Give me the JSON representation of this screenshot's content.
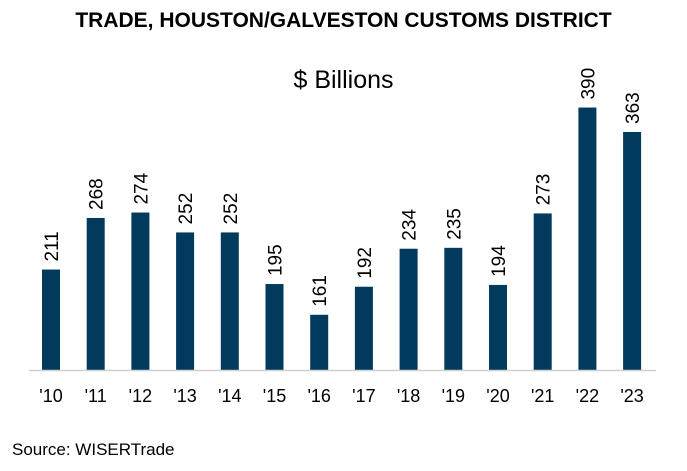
{
  "chart_data": {
    "type": "bar",
    "title": "TRADE, HOUSTON/GALVESTON CUSTOMS DISTRICT",
    "subtitle": "$ Billions",
    "source": "Source: WISERTrade",
    "categories": [
      "'10",
      "'11",
      "'12",
      "'13",
      "'14",
      "'15",
      "'16",
      "'17",
      "'18",
      "'19",
      "'20",
      "'21",
      "'22",
      "'23"
    ],
    "values": [
      211,
      268,
      274,
      252,
      252,
      195,
      161,
      192,
      234,
      235,
      194,
      273,
      390,
      363
    ],
    "data_labels": [
      "211",
      "268",
      "274",
      "252",
      "252",
      "195",
      "161",
      "192",
      "234",
      "235",
      "194",
      "273",
      "390",
      "363"
    ],
    "xlabel": "",
    "ylabel": "",
    "ylim": [
      100,
      400
    ],
    "grid": false,
    "bar_color": "#003a5d",
    "axis_color": "#d0d0d0"
  }
}
